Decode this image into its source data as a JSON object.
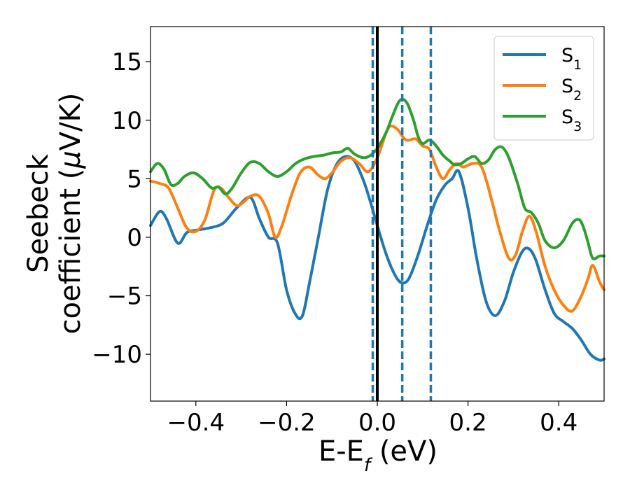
{
  "chart_data": {
    "type": "line",
    "xlabel": "E-E",
    "xlabel_sub": "f",
    "xlabel_unit": " (eV)",
    "ylabel_line1": "Seebeck",
    "ylabel_line2_pre": "coefficient  (",
    "ylabel_mu": "μ",
    "ylabel_line2_post": "V/K)",
    "xlim": [
      -0.5,
      0.5
    ],
    "ylim": [
      -14,
      18
    ],
    "xticks": [
      -0.4,
      -0.2,
      0.0,
      0.2,
      0.4
    ],
    "xtick_labels": [
      "−0.4",
      "−0.2",
      "0.0",
      "0.2",
      "0.4"
    ],
    "yticks": [
      -10,
      -5,
      0,
      5,
      10,
      15
    ],
    "ytick_labels": [
      "−10",
      "−5",
      "0",
      "5",
      "10",
      "15"
    ],
    "grid": false,
    "legend_position": "top-right",
    "vlines_dashed": [
      -0.01,
      0.055,
      0.118
    ],
    "vline_solid": 0.0,
    "series": [
      {
        "name": "S",
        "sub": "1",
        "color": "#1f77b4",
        "points": [
          [
            -0.5,
            1.0
          ],
          [
            -0.48,
            2.2
          ],
          [
            -0.465,
            1.6
          ],
          [
            -0.44,
            -0.5
          ],
          [
            -0.42,
            0.4
          ],
          [
            -0.4,
            0.6
          ],
          [
            -0.37,
            0.8
          ],
          [
            -0.34,
            1.2
          ],
          [
            -0.31,
            2.5
          ],
          [
            -0.28,
            3.4
          ],
          [
            -0.26,
            1.6
          ],
          [
            -0.24,
            0.0
          ],
          [
            -0.22,
            -0.5
          ],
          [
            -0.2,
            -4.5
          ],
          [
            -0.18,
            -6.6
          ],
          [
            -0.165,
            -6.7
          ],
          [
            -0.15,
            -4.0
          ],
          [
            -0.13,
            0.0
          ],
          [
            -0.11,
            4.0
          ],
          [
            -0.09,
            6.2
          ],
          [
            -0.07,
            6.9
          ],
          [
            -0.05,
            6.5
          ],
          [
            -0.03,
            4.8
          ],
          [
            -0.015,
            3.0
          ],
          [
            0.0,
            1.0
          ],
          [
            0.02,
            -1.5
          ],
          [
            0.04,
            -3.3
          ],
          [
            0.055,
            -3.9
          ],
          [
            0.07,
            -3.5
          ],
          [
            0.09,
            -1.5
          ],
          [
            0.11,
            1.0
          ],
          [
            0.13,
            3.2
          ],
          [
            0.15,
            4.5
          ],
          [
            0.165,
            5.0
          ],
          [
            0.18,
            5.6
          ],
          [
            0.2,
            2.5
          ],
          [
            0.22,
            -2.0
          ],
          [
            0.24,
            -5.5
          ],
          [
            0.26,
            -6.7
          ],
          [
            0.28,
            -5.5
          ],
          [
            0.3,
            -3.0
          ],
          [
            0.32,
            -1.2
          ],
          [
            0.335,
            -1.0
          ],
          [
            0.35,
            -2.0
          ],
          [
            0.37,
            -4.5
          ],
          [
            0.39,
            -6.5
          ],
          [
            0.41,
            -7.2
          ],
          [
            0.43,
            -7.8
          ],
          [
            0.45,
            -8.8
          ],
          [
            0.47,
            -10.0
          ],
          [
            0.49,
            -10.5
          ],
          [
            0.5,
            -10.4
          ]
        ]
      },
      {
        "name": "S",
        "sub": "2",
        "color": "#ff7f0e",
        "points": [
          [
            -0.5,
            4.8
          ],
          [
            -0.48,
            4.6
          ],
          [
            -0.46,
            4.2
          ],
          [
            -0.44,
            2.5
          ],
          [
            -0.42,
            0.8
          ],
          [
            -0.4,
            0.5
          ],
          [
            -0.38,
            1.5
          ],
          [
            -0.36,
            4.0
          ],
          [
            -0.345,
            4.2
          ],
          [
            -0.33,
            3.5
          ],
          [
            -0.31,
            2.7
          ],
          [
            -0.295,
            3.0
          ],
          [
            -0.28,
            3.5
          ],
          [
            -0.26,
            3.5
          ],
          [
            -0.24,
            2.0
          ],
          [
            -0.225,
            0.0
          ],
          [
            -0.21,
            1.0
          ],
          [
            -0.19,
            3.5
          ],
          [
            -0.17,
            5.5
          ],
          [
            -0.15,
            6.0
          ],
          [
            -0.13,
            5.3
          ],
          [
            -0.115,
            5.0
          ],
          [
            -0.1,
            5.5
          ],
          [
            -0.08,
            6.5
          ],
          [
            -0.06,
            6.8
          ],
          [
            -0.04,
            6.3
          ],
          [
            -0.02,
            5.6
          ],
          [
            0.0,
            6.8
          ],
          [
            0.02,
            9.0
          ],
          [
            0.03,
            9.5
          ],
          [
            0.045,
            9.2
          ],
          [
            0.06,
            8.4
          ],
          [
            0.07,
            8.3
          ],
          [
            0.085,
            8.4
          ],
          [
            0.1,
            7.8
          ],
          [
            0.115,
            7.5
          ],
          [
            0.13,
            6.0
          ],
          [
            0.145,
            5.0
          ],
          [
            0.16,
            5.8
          ],
          [
            0.175,
            6.3
          ],
          [
            0.19,
            6.0
          ],
          [
            0.21,
            6.3
          ],
          [
            0.23,
            6.0
          ],
          [
            0.25,
            3.5
          ],
          [
            0.27,
            0.5
          ],
          [
            0.29,
            -1.8
          ],
          [
            0.305,
            -1.5
          ],
          [
            0.32,
            0.5
          ],
          [
            0.335,
            1.8
          ],
          [
            0.35,
            0.5
          ],
          [
            0.37,
            -2.5
          ],
          [
            0.39,
            -4.5
          ],
          [
            0.41,
            -5.8
          ],
          [
            0.43,
            -6.3
          ],
          [
            0.45,
            -5.0
          ],
          [
            0.465,
            -3.5
          ],
          [
            0.475,
            -2.4
          ],
          [
            0.49,
            -3.8
          ],
          [
            0.5,
            -4.5
          ]
        ]
      },
      {
        "name": "S",
        "sub": "3",
        "color": "#2ca02c",
        "points": [
          [
            -0.5,
            5.6
          ],
          [
            -0.485,
            6.3
          ],
          [
            -0.47,
            5.8
          ],
          [
            -0.455,
            4.5
          ],
          [
            -0.44,
            4.6
          ],
          [
            -0.425,
            5.2
          ],
          [
            -0.405,
            5.5
          ],
          [
            -0.385,
            5.0
          ],
          [
            -0.365,
            4.2
          ],
          [
            -0.35,
            4.3
          ],
          [
            -0.335,
            3.7
          ],
          [
            -0.32,
            4.2
          ],
          [
            -0.3,
            5.5
          ],
          [
            -0.28,
            6.4
          ],
          [
            -0.26,
            6.3
          ],
          [
            -0.24,
            5.6
          ],
          [
            -0.22,
            5.2
          ],
          [
            -0.2,
            5.6
          ],
          [
            -0.18,
            6.3
          ],
          [
            -0.16,
            6.7
          ],
          [
            -0.14,
            6.9
          ],
          [
            -0.12,
            7.0
          ],
          [
            -0.1,
            7.2
          ],
          [
            -0.08,
            7.3
          ],
          [
            -0.065,
            7.6
          ],
          [
            -0.05,
            7.1
          ],
          [
            -0.03,
            6.8
          ],
          [
            -0.015,
            7.0
          ],
          [
            0.0,
            7.6
          ],
          [
            0.02,
            9.0
          ],
          [
            0.035,
            10.5
          ],
          [
            0.05,
            11.7
          ],
          [
            0.065,
            11.5
          ],
          [
            0.08,
            10.0
          ],
          [
            0.09,
            8.6
          ],
          [
            0.1,
            8.0
          ],
          [
            0.115,
            8.3
          ],
          [
            0.13,
            7.8
          ],
          [
            0.145,
            7.0
          ],
          [
            0.16,
            6.5
          ],
          [
            0.17,
            6.2
          ],
          [
            0.185,
            6.3
          ],
          [
            0.2,
            6.7
          ],
          [
            0.215,
            6.9
          ],
          [
            0.23,
            6.3
          ],
          [
            0.245,
            6.6
          ],
          [
            0.26,
            7.5
          ],
          [
            0.275,
            7.7
          ],
          [
            0.29,
            6.8
          ],
          [
            0.31,
            4.5
          ],
          [
            0.325,
            2.5
          ],
          [
            0.34,
            2.1
          ],
          [
            0.355,
            1.2
          ],
          [
            0.37,
            -0.3
          ],
          [
            0.39,
            -0.9
          ],
          [
            0.41,
            -0.3
          ],
          [
            0.43,
            1.2
          ],
          [
            0.445,
            1.5
          ],
          [
            0.455,
            0.8
          ],
          [
            0.465,
            -0.5
          ],
          [
            0.475,
            -1.8
          ],
          [
            0.49,
            -1.6
          ],
          [
            0.5,
            -1.6
          ]
        ]
      }
    ]
  }
}
